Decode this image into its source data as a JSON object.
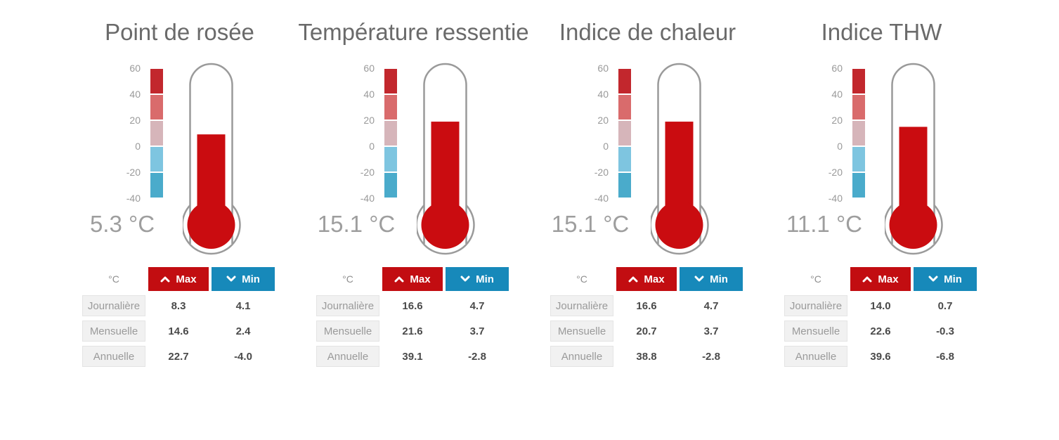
{
  "colors": {
    "mercury": "#ca0c10",
    "outline": "#9a9a9a",
    "max_red": "#c20d11",
    "min_blue": "#1789ba",
    "title_gray": "#6a6a6a",
    "value_gray": "#9e9e9e",
    "scale": [
      "#c2272d",
      "#d96b6c",
      "#d6b5ba",
      "#7ec5e0",
      "#4aabcb"
    ]
  },
  "scale": {
    "ticks": [
      "60",
      "40",
      "20",
      "0",
      "-20",
      "-40"
    ]
  },
  "table": {
    "unit_header": "°C",
    "max_label": "Max",
    "min_label": "Min",
    "row_labels": [
      "Journalière",
      "Mensuelle",
      "Annuelle"
    ]
  },
  "chart_data": [
    {
      "type": "thermometer-gauge",
      "title": "Point de rosée",
      "value": "5.3",
      "unit": "°C",
      "axis_range": [
        -40,
        60
      ],
      "axis_ticks": [
        60,
        40,
        20,
        0,
        -20,
        -40
      ],
      "stats": [
        {
          "max": "8.3",
          "min": "4.1"
        },
        {
          "max": "14.6",
          "min": "2.4"
        },
        {
          "max": "22.7",
          "min": "-4.0"
        }
      ]
    },
    {
      "type": "thermometer-gauge",
      "title": "Température ressentie",
      "value": "15.1",
      "unit": "°C",
      "axis_range": [
        -40,
        60
      ],
      "axis_ticks": [
        60,
        40,
        20,
        0,
        -20,
        -40
      ],
      "stats": [
        {
          "max": "16.6",
          "min": "4.7"
        },
        {
          "max": "21.6",
          "min": "3.7"
        },
        {
          "max": "39.1",
          "min": "-2.8"
        }
      ]
    },
    {
      "type": "thermometer-gauge",
      "title": "Indice de chaleur",
      "value": "15.1",
      "unit": "°C",
      "axis_range": [
        -40,
        60
      ],
      "axis_ticks": [
        60,
        40,
        20,
        0,
        -20,
        -40
      ],
      "stats": [
        {
          "max": "16.6",
          "min": "4.7"
        },
        {
          "max": "20.7",
          "min": "3.7"
        },
        {
          "max": "38.8",
          "min": "-2.8"
        }
      ]
    },
    {
      "type": "thermometer-gauge",
      "title": "Indice THW",
      "value": "11.1",
      "unit": "°C",
      "axis_range": [
        -40,
        60
      ],
      "axis_ticks": [
        60,
        40,
        20,
        0,
        -20,
        -40
      ],
      "stats": [
        {
          "max": "14.0",
          "min": "0.7"
        },
        {
          "max": "22.6",
          "min": "-0.3"
        },
        {
          "max": "39.6",
          "min": "-6.8"
        }
      ]
    }
  ]
}
